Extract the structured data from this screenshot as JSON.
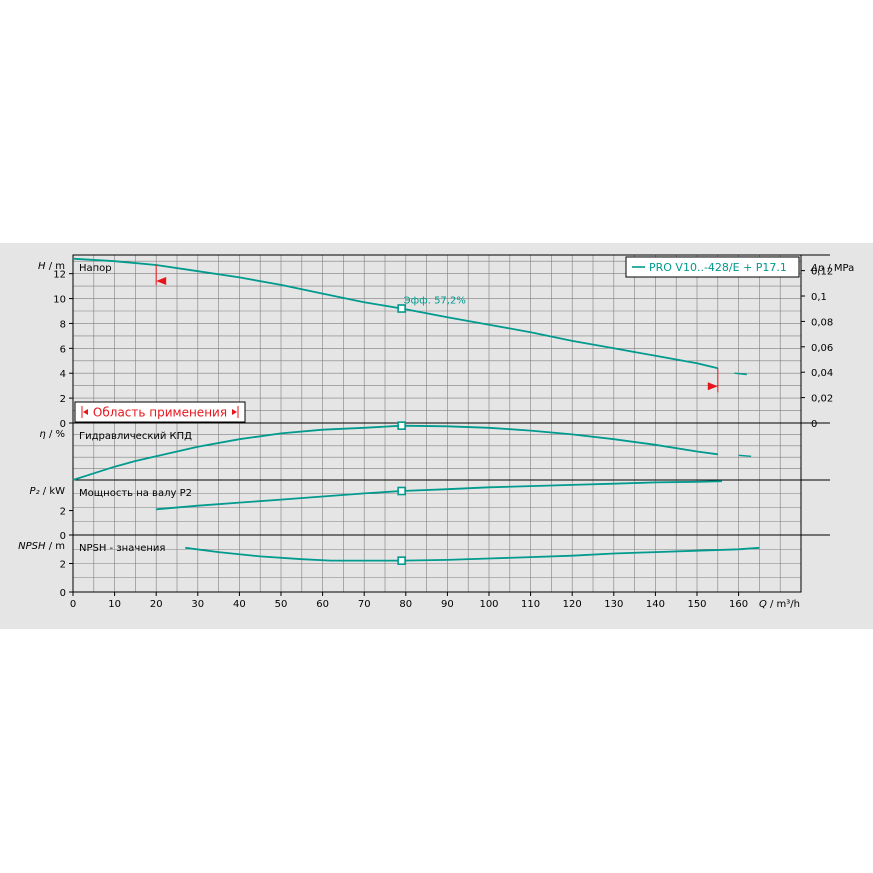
{
  "colors": {
    "curve": "#009a8e",
    "range": "#e8141b",
    "grid": "#7f7f7f",
    "panel": "#e5e5e5"
  },
  "chart_data": {
    "type": "line",
    "legend": {
      "label": "PRO V10..-428/E + P17.1",
      "placement": "top-right"
    },
    "x_axis": {
      "label_var": "Q",
      "label_unit": "/ m³/h",
      "range": [
        0,
        175
      ],
      "ticks": [
        0,
        10,
        20,
        30,
        40,
        50,
        60,
        70,
        80,
        90,
        100,
        110,
        120,
        130,
        140,
        150,
        160
      ]
    },
    "operating_range": {
      "label": "Область применения",
      "q_min": 20,
      "q_max": 155
    },
    "panels": [
      {
        "id": "head",
        "title": "Напор",
        "y_var": "H",
        "y_unit": "/ m",
        "y_range": [
          0,
          13.5
        ],
        "y_ticks": [
          0,
          2,
          4,
          6,
          8,
          10,
          12
        ],
        "right_var": "Δp",
        "right_unit": "/ MPa",
        "right_ticks": [
          "0",
          "0,02",
          "0,04",
          "0,06",
          "0,08",
          "0,1",
          "0,12"
        ],
        "right_values": [
          0,
          0.02,
          0.04,
          0.06,
          0.08,
          0.1,
          0.12
        ],
        "curve": {
          "q": [
            0,
            10,
            20,
            30,
            40,
            50,
            60,
            70,
            79,
            90,
            100,
            110,
            120,
            130,
            140,
            150,
            155
          ],
          "v": [
            13.2,
            13.0,
            12.7,
            12.2,
            11.7,
            11.1,
            10.4,
            9.7,
            9.2,
            8.5,
            7.9,
            7.3,
            6.6,
            6.0,
            5.4,
            4.8,
            4.4
          ]
        },
        "tail": {
          "q": [
            159,
            162
          ],
          "v": [
            4.0,
            3.9
          ]
        },
        "duty_point": {
          "q": 79,
          "v": 9.2,
          "label": "Эфф.  57,2%"
        }
      },
      {
        "id": "efficiency",
        "title": "Гидравлический КПД",
        "y_var": "η",
        "y_unit": "/ %",
        "y_range": [
          0,
          60
        ],
        "y_ticks": [],
        "curve": {
          "q": [
            0,
            5,
            10,
            15,
            20,
            25,
            30,
            40,
            50,
            60,
            70,
            79,
            90,
            100,
            110,
            120,
            130,
            140,
            150,
            155
          ],
          "v": [
            0,
            7,
            14,
            20,
            25,
            30,
            35,
            43,
            49,
            53,
            55,
            57.2,
            56.5,
            55,
            52,
            48,
            43,
            37,
            30,
            27
          ]
        },
        "tail": {
          "q": [
            160,
            163
          ],
          "v": [
            26,
            25
          ]
        },
        "duty_point": {
          "q": 79,
          "v": 57.2
        }
      },
      {
        "id": "power",
        "title": "Мощность на валу P2",
        "y_var": "P₂",
        "y_unit": "/ kW",
        "y_range": [
          0,
          4.5
        ],
        "y_ticks": [
          0,
          2
        ],
        "curve": {
          "q": [
            20,
            30,
            40,
            50,
            60,
            70,
            79,
            90,
            100,
            110,
            120,
            130,
            140,
            150,
            156
          ],
          "v": [
            2.1,
            2.4,
            2.65,
            2.9,
            3.15,
            3.4,
            3.6,
            3.75,
            3.9,
            4.0,
            4.1,
            4.2,
            4.3,
            4.35,
            4.4
          ]
        },
        "duty_point": {
          "q": 79,
          "v": 3.6
        }
      },
      {
        "id": "npsh",
        "title": "NPSH - значения",
        "y_var": "NPSH",
        "y_unit": "/ m",
        "y_range": [
          0,
          4
        ],
        "y_ticks": [
          0,
          2
        ],
        "curve": {
          "q": [
            27,
            35,
            45,
            55,
            62,
            70,
            79,
            90,
            100,
            110,
            120,
            130,
            140,
            150,
            160,
            165
          ],
          "v": [
            3.1,
            2.8,
            2.5,
            2.3,
            2.2,
            2.2,
            2.2,
            2.25,
            2.35,
            2.45,
            2.55,
            2.7,
            2.8,
            2.9,
            3.0,
            3.1
          ]
        },
        "duty_point": {
          "q": 79,
          "v": 2.2
        }
      }
    ]
  }
}
